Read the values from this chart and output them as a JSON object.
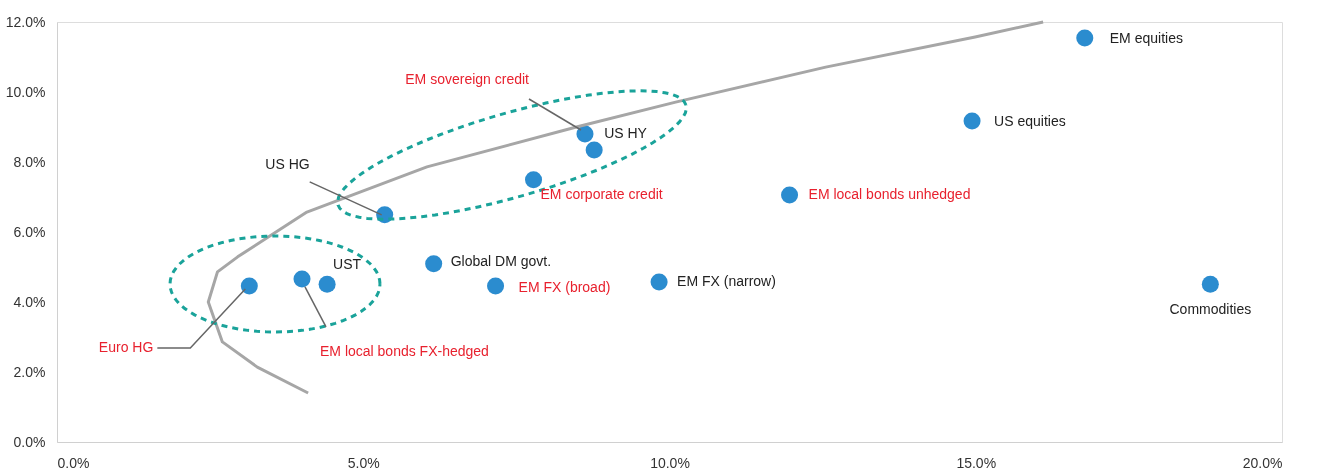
{
  "chart_data": {
    "type": "scatter",
    "xlim": [
      0,
      20
    ],
    "xticks": [
      {
        "value": 0,
        "label": "0.0%"
      },
      {
        "value": 5,
        "label": "5.0%"
      },
      {
        "value": 10,
        "label": "10.0%"
      },
      {
        "value": 15,
        "label": "15.0%"
      },
      {
        "value": 20,
        "label": "20.0%"
      }
    ],
    "ylim": [
      0,
      12
    ],
    "yticks": [
      {
        "value": 0,
        "label": "0.0%"
      },
      {
        "value": 2,
        "label": "2.0%"
      },
      {
        "value": 4,
        "label": "4.0%"
      },
      {
        "value": 6,
        "label": "6.0%"
      },
      {
        "value": 8,
        "label": "8.0%"
      },
      {
        "value": 10,
        "label": "10.0%"
      },
      {
        "value": 12,
        "label": "12.0%"
      }
    ],
    "grid": false,
    "series": [
      {
        "type": "scatter",
        "marker": "circle",
        "color": "#2b8ccf",
        "x": [
          3.14,
          4.0,
          4.41,
          5.35,
          6.15,
          7.16,
          7.78,
          8.62,
          8.77,
          9.83,
          11.96,
          14.94,
          16.78,
          18.83
        ],
        "values": [
          4.46,
          4.66,
          4.51,
          6.49,
          5.09,
          4.46,
          7.49,
          8.8,
          8.34,
          4.57,
          7.06,
          9.17,
          11.54,
          4.51
        ]
      },
      {
        "type": "line",
        "color": "#a6a6a6",
        "line_style": "solid",
        "x": [
          4.1,
          3.27,
          2.7,
          2.47,
          2.62,
          2.95,
          4.08,
          6.04,
          8.48,
          10.1,
          12.55,
          14.99,
          16.1
        ],
        "values": [
          1.4,
          2.14,
          2.86,
          4.0,
          4.86,
          5.29,
          6.57,
          7.86,
          9.0,
          9.71,
          10.71,
          11.57,
          12.0
        ]
      }
    ],
    "annotations": [
      {
        "text": "Euro HG",
        "x": 3.14,
        "y": 4.46
      },
      {
        "text": "EM local bonds FX-hedged",
        "x": 4.0,
        "y": 4.66
      },
      {
        "text": "UST",
        "x": 4.41,
        "y": 4.51
      },
      {
        "text": "US HG",
        "x": 5.35,
        "y": 6.49
      },
      {
        "text": "Global DM govt.",
        "x": 6.15,
        "y": 5.09
      },
      {
        "text": "EM FX (broad)",
        "x": 7.16,
        "y": 4.46
      },
      {
        "text": "EM corporate credit",
        "x": 7.78,
        "y": 7.49
      },
      {
        "text": "EM sovereign credit",
        "x": 8.62,
        "y": 8.8
      },
      {
        "text": "US HY",
        "x": 8.77,
        "y": 8.34
      },
      {
        "text": "EM FX (narrow)",
        "x": 9.83,
        "y": 4.57
      },
      {
        "text": "EM local bonds unhedged",
        "x": 11.96,
        "y": 7.06
      },
      {
        "text": "US equities",
        "x": 14.94,
        "y": 9.17
      },
      {
        "text": "EM equities",
        "x": 16.78,
        "y": 11.54
      },
      {
        "text": "Commodities",
        "x": 18.83,
        "y": 4.51
      }
    ]
  }
}
